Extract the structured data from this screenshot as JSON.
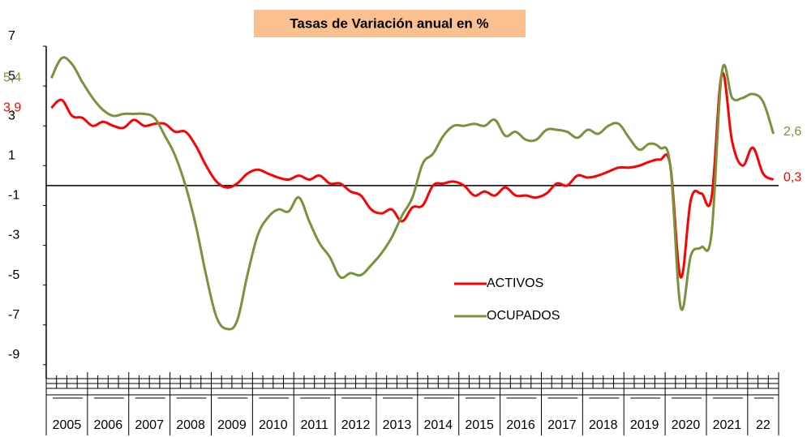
{
  "chart_data": {
    "type": "line",
    "title": "Tasas de Variación anual en %",
    "categories": [
      "2005",
      null,
      null,
      null,
      "2006",
      null,
      null,
      null,
      "2007",
      null,
      null,
      null,
      "2008",
      null,
      null,
      null,
      "2009",
      null,
      null,
      null,
      "2010",
      null,
      null,
      null,
      "2011",
      null,
      null,
      null,
      "2012",
      null,
      null,
      null,
      "2013",
      null,
      null,
      null,
      "2014",
      null,
      null,
      null,
      "2015",
      null,
      null,
      null,
      "2016",
      null,
      null,
      null,
      "2017",
      null,
      null,
      null,
      "2018",
      null,
      null,
      null,
      "2019",
      null,
      null,
      null,
      "2020",
      null,
      null,
      null,
      "2021",
      null,
      null,
      null,
      "22",
      null,
      null
    ],
    "series": [
      {
        "name": "ACTIVOS",
        "color": "#ff0000",
        "values": [
          3.9,
          4.3,
          3.5,
          3.4,
          3.0,
          3.2,
          3.0,
          2.9,
          3.3,
          3.0,
          3.1,
          3.1,
          2.7,
          2.7,
          2.0,
          1.0,
          0.2,
          -0.1,
          0.1,
          0.6,
          0.8,
          0.6,
          0.4,
          0.3,
          0.5,
          0.3,
          0.5,
          0.1,
          0.1,
          -0.3,
          -0.5,
          -1.2,
          -1.4,
          -1.2,
          -1.8,
          -1.1,
          -1.0,
          0.0,
          0.1,
          0.2,
          0.0,
          -0.5,
          -0.3,
          -0.5,
          -0.1,
          -0.5,
          -0.5,
          -0.6,
          -0.4,
          0.1,
          0.0,
          0.5,
          0.4,
          0.5,
          0.7,
          0.9,
          0.9,
          1.0,
          1.2,
          1.3,
          1.0,
          -4.6,
          -0.7,
          -0.4,
          -0.6,
          5.6,
          2.2,
          1.0,
          1.9,
          0.6,
          0.3
        ],
        "value_labels": [
          "3,9",
          null,
          null,
          null,
          null,
          null,
          null,
          null,
          null,
          null,
          null,
          null,
          null,
          null,
          null,
          null,
          null,
          null,
          null,
          null,
          null,
          null,
          null,
          null,
          null,
          null,
          null,
          null,
          null,
          null,
          null,
          null,
          null,
          null,
          null,
          null,
          null,
          null,
          null,
          null,
          null,
          null,
          null,
          null,
          null,
          null,
          null,
          null,
          null,
          null,
          null,
          null,
          null,
          null,
          null,
          null,
          null,
          null,
          null,
          null,
          null,
          null,
          null,
          null,
          null,
          null,
          null,
          null,
          null,
          null,
          "0,3"
        ]
      },
      {
        "name": "OCUPADOS",
        "color": "#77933c",
        "values": [
          5.4,
          6.4,
          6.1,
          5.2,
          4.4,
          3.8,
          3.5,
          3.6,
          3.6,
          3.6,
          3.4,
          2.5,
          1.5,
          0.0,
          -2.0,
          -4.5,
          -6.6,
          -7.2,
          -6.8,
          -4.5,
          -2.5,
          -1.6,
          -1.2,
          -1.3,
          -0.6,
          -1.8,
          -2.9,
          -3.6,
          -4.6,
          -4.4,
          -4.5,
          -4.0,
          -3.4,
          -2.6,
          -1.5,
          -0.6,
          1.1,
          1.6,
          2.5,
          3.0,
          3.0,
          3.1,
          3.0,
          3.3,
          2.5,
          2.7,
          2.3,
          2.3,
          2.8,
          2.8,
          2.7,
          2.4,
          2.8,
          2.6,
          3.0,
          3.1,
          2.4,
          1.8,
          2.1,
          1.9,
          1.0,
          -6.1,
          -3.5,
          -3.1,
          -2.4,
          5.7,
          4.4,
          4.4,
          4.6,
          4.2,
          2.6
        ],
        "value_labels": [
          "5,4",
          null,
          null,
          null,
          null,
          null,
          null,
          null,
          null,
          null,
          null,
          null,
          null,
          null,
          null,
          null,
          null,
          null,
          null,
          null,
          null,
          null,
          null,
          null,
          null,
          null,
          null,
          null,
          null,
          null,
          null,
          null,
          null,
          null,
          null,
          null,
          null,
          null,
          null,
          null,
          null,
          null,
          null,
          null,
          null,
          null,
          null,
          null,
          null,
          null,
          null,
          null,
          null,
          null,
          null,
          null,
          null,
          null,
          null,
          null,
          null,
          null,
          null,
          null,
          null,
          null,
          null,
          null,
          null,
          null,
          "2,6"
        ]
      }
    ],
    "ylim": [
      -9.7,
      7
    ],
    "yticks": [
      7,
      5,
      3,
      1,
      -1,
      -3,
      -5,
      -7,
      -9
    ]
  }
}
